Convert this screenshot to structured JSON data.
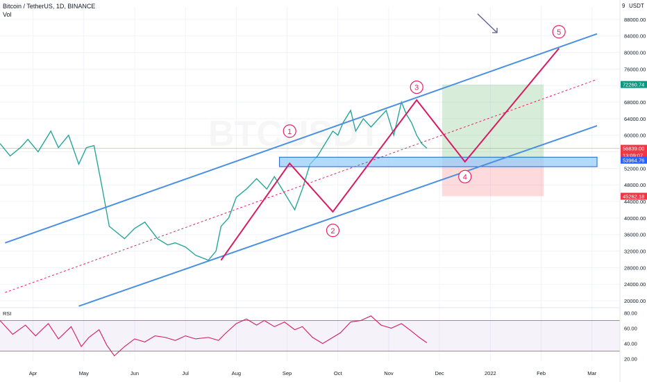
{
  "header": {
    "title": "Bitcoin / TetherUS, 1D, BINANCE",
    "volume_label": "Vol",
    "watermark": "BTCUSDT",
    "currency": "USDT",
    "corner_digit": "9"
  },
  "chart_data": {
    "type": "candlestick",
    "symbol": "Bitcoin / TetherUS",
    "interval": "1D",
    "exchange": "BINANCE",
    "y_ticks": [
      20000,
      24000,
      28000,
      32000,
      36000,
      40000,
      44000,
      48000,
      52000,
      56000,
      60000,
      64000,
      68000,
      72000,
      76000,
      80000,
      84000,
      88000
    ],
    "y_tick_labels": [
      "20000.00",
      "24000.00",
      "28000.00",
      "32000.00",
      "36000.00",
      "40000.00",
      "44000.00",
      "48000.00",
      "52000.00",
      "56000.00",
      "60000.00",
      "64000.00",
      "68000.00",
      "72000.00",
      "76000.00",
      "80000.00",
      "84000.00",
      "88000.00"
    ],
    "ylim": [
      18500,
      91000
    ],
    "x_labels": [
      "Apr",
      "May",
      "Jun",
      "Jul",
      "Aug",
      "Sep",
      "Oct",
      "Nov",
      "Dec",
      "2022",
      "Feb",
      "Mar"
    ],
    "x_months": [
      3,
      4,
      5,
      6,
      7,
      8,
      9,
      10,
      11,
      12,
      13,
      14
    ],
    "x_range_months": [
      2.35,
      14.55
    ],
    "price_path_months": [
      2.35,
      2.55,
      2.75,
      2.9,
      3.1,
      3.35,
      3.5,
      3.7,
      3.9,
      4.05,
      4.2,
      4.35,
      4.5,
      4.6,
      4.8,
      5.0,
      5.2,
      5.45,
      5.65,
      5.8,
      6.0,
      6.2,
      6.45,
      6.6,
      6.7,
      6.85,
      7.0,
      7.2,
      7.4,
      7.6,
      7.75,
      7.95,
      8.05,
      8.15,
      8.3,
      8.45,
      8.6,
      8.75,
      8.9,
      9.0,
      9.1,
      9.25,
      9.35,
      9.5,
      9.65,
      9.8,
      9.95,
      10.1,
      10.25,
      10.35,
      10.45,
      10.55,
      10.65,
      10.75
    ],
    "price_path": [
      58000,
      55000,
      57000,
      59000,
      56000,
      61000,
      57000,
      60000,
      53000,
      57000,
      57500,
      48000,
      38000,
      37000,
      35000,
      37500,
      39000,
      35000,
      33500,
      34000,
      33000,
      31000,
      29800,
      32000,
      38000,
      40000,
      45000,
      47000,
      49500,
      47000,
      50000,
      46000,
      44000,
      42000,
      47000,
      53000,
      55000,
      58000,
      61000,
      60000,
      63000,
      66000,
      61000,
      64000,
      62000,
      64000,
      66000,
      60000,
      68000,
      65000,
      63000,
      60000,
      58000,
      56839
    ],
    "price_labels": {
      "current": "56839.00",
      "countdown": "13:09:07",
      "zone": "53964.76",
      "target": "72260.74",
      "stop": "45262.18"
    },
    "tag_colors": {
      "current": "#f23645",
      "zone": "#2962ff",
      "target": "#089981",
      "stop": "#f23645"
    },
    "channel": {
      "upper": {
        "x": [
          2.45,
          14.1
        ],
        "y": [
          34000,
          84500
        ]
      },
      "lower": {
        "x": [
          3.9,
          14.1
        ],
        "y": [
          18700,
          62300
        ]
      },
      "middle": {
        "x": [
          2.45,
          14.1
        ],
        "y": [
          22000,
          73500
        ]
      }
    },
    "support_zone": {
      "x": [
        7.85,
        14.1
      ],
      "y": [
        52400,
        54700
      ]
    },
    "target_box": {
      "x": [
        11.05,
        13.05
      ],
      "y": [
        53964.76,
        72260.74
      ]
    },
    "stop_box": {
      "x": [
        11.05,
        13.05
      ],
      "y": [
        45262.18,
        53964.76
      ]
    },
    "wave_path": {
      "x": [
        6.7,
        8.05,
        8.9,
        10.55,
        11.5,
        13.35
      ],
      "y": [
        29800,
        53200,
        41500,
        68500,
        53600,
        81000
      ]
    },
    "wave_labels": [
      {
        "label": "1",
        "x": 8.05,
        "y": 61000
      },
      {
        "label": "2",
        "x": 8.9,
        "y": 37000
      },
      {
        "label": "3",
        "x": 10.55,
        "y": 71600
      },
      {
        "label": "4",
        "x": 11.5,
        "y": 50000
      },
      {
        "label": "5",
        "x": 13.35,
        "y": 85000
      }
    ],
    "rsi": {
      "label": "RSI",
      "ticks": [
        20,
        40,
        60,
        80
      ],
      "tick_labels": [
        "20.00",
        "40.00",
        "60.00",
        "80.00"
      ],
      "band": [
        30,
        70
      ],
      "ylim": [
        17,
        84
      ],
      "x": [
        2.35,
        2.6,
        2.85,
        3.05,
        3.3,
        3.5,
        3.75,
        3.95,
        4.1,
        4.3,
        4.45,
        4.6,
        4.8,
        5.0,
        5.2,
        5.4,
        5.6,
        5.8,
        6.0,
        6.2,
        6.45,
        6.65,
        6.8,
        7.0,
        7.2,
        7.4,
        7.55,
        7.75,
        7.95,
        8.15,
        8.3,
        8.5,
        8.7,
        8.9,
        9.05,
        9.25,
        9.45,
        9.65,
        9.85,
        10.05,
        10.25,
        10.45,
        10.6,
        10.75
      ],
      "values": [
        70,
        52,
        64,
        50,
        66,
        46,
        62,
        36,
        48,
        58,
        38,
        24,
        36,
        46,
        42,
        50,
        48,
        44,
        50,
        46,
        48,
        44,
        54,
        66,
        72,
        64,
        70,
        62,
        68,
        58,
        62,
        48,
        40,
        48,
        54,
        68,
        70,
        76,
        64,
        60,
        66,
        56,
        48,
        41
      ]
    }
  }
}
